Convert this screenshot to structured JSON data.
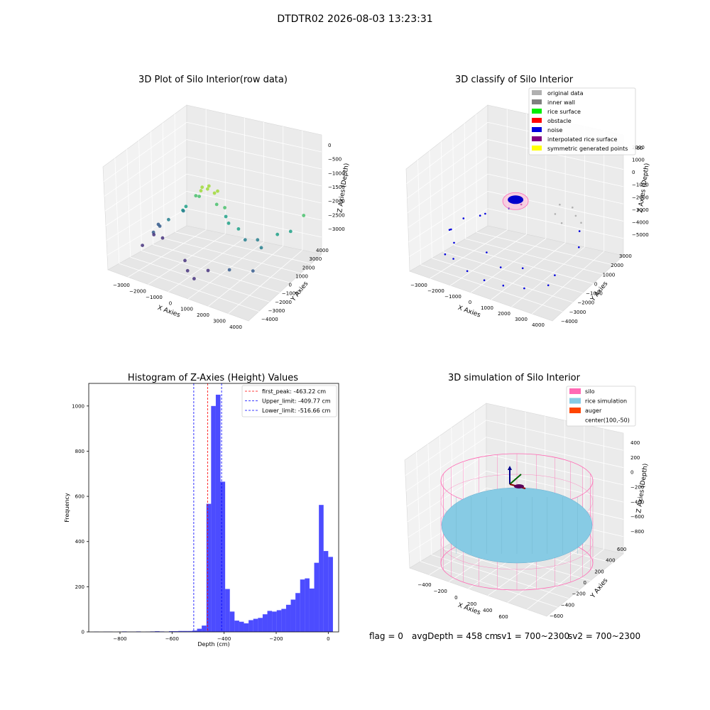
{
  "page_title": "DTDTR02 2026-08-03 13:23:31",
  "footer": {
    "flag": "flag = 0",
    "avgdepth": "avgDepth = 458 cm",
    "sv1": "sv1 = 700~2300",
    "sv2": "sv2 = 700~2300"
  },
  "chart_data": [
    {
      "type": "scatter",
      "dims": 3,
      "title": "3D Plot of Silo Interior(row data)",
      "xlabel": "X Axies",
      "ylabel": "Y Axies",
      "zlabel": "Z Axies (Depth)",
      "x_ticks": [
        "−3000",
        "−2000",
        "−1000",
        "0",
        "1000",
        "2000",
        "3000",
        "4000"
      ],
      "y_ticks": [
        "−4000",
        "−3000",
        "−2000",
        "−1000",
        "0",
        "1000",
        "2000",
        "3000",
        "4000"
      ],
      "z_ticks": [
        "0",
        "−500",
        "−1000",
        "−1500",
        "−2000",
        "−2500",
        "−3000"
      ],
      "xlim": [
        -3500,
        4000
      ],
      "ylim": [
        -4000,
        4000
      ],
      "zlim": [
        -3500,
        0
      ],
      "colormap": "viridis",
      "series": [
        {
          "points": [
            [
              0,
              -800,
              -600
            ],
            [
              200,
              -500,
              -550
            ],
            [
              -200,
              -300,
              -620
            ],
            [
              400,
              -200,
              -700
            ],
            [
              -100,
              200,
              -650
            ],
            [
              300,
              300,
              -750
            ],
            [
              -400,
              -600,
              -900
            ],
            [
              600,
              -400,
              -1000
            ],
            [
              -600,
              100,
              -1100
            ],
            [
              700,
              200,
              -1200
            ],
            [
              -800,
              -900,
              -1300
            ],
            [
              900,
              -100,
              -1400
            ],
            [
              1200,
              -400,
              -1500
            ],
            [
              -1200,
              -500,
              -1600
            ],
            [
              1500,
              0,
              -1700
            ],
            [
              -1500,
              100,
              -1800
            ],
            [
              2000,
              -300,
              -1900
            ],
            [
              2400,
              200,
              -1900
            ],
            [
              2800,
              -200,
              -2000
            ],
            [
              -2000,
              -500,
              -2100
            ],
            [
              -2400,
              -800,
              -2300
            ],
            [
              -2600,
              -300,
              -2500
            ],
            [
              -2800,
              -600,
              -2700
            ],
            [
              -3000,
              -200,
              -2900
            ],
            [
              -2700,
              100,
              -3000
            ],
            [
              0,
              -2500,
              -3000
            ],
            [
              1000,
              -2300,
              -2800
            ],
            [
              2000,
              -2000,
              -2600
            ],
            [
              3000,
              -1500,
              -2500
            ],
            [
              -500,
              -1800,
              -2900
            ],
            [
              3500,
              1500,
              -1600
            ],
            [
              3700,
              2500,
              -1200
            ],
            [
              3600,
              0,
              -1400
            ],
            [
              -3100,
              -1200,
              -3100
            ],
            [
              500,
              -2800,
              -3100
            ]
          ]
        }
      ]
    },
    {
      "type": "scatter",
      "dims": 3,
      "title": "3D classify of Silo Interior",
      "xlabel": "X Axies",
      "ylabel": "Y Axies",
      "zlabel": "Z Axies (Depth)",
      "x_ticks": [
        "−3000",
        "−2000",
        "−1000",
        "0",
        "1000",
        "2000",
        "3000",
        "4000"
      ],
      "y_ticks": [
        "−4000",
        "−3000",
        "−2000",
        "−1000",
        "0",
        "1000",
        "2000",
        "3000"
      ],
      "z_ticks": [
        "2000",
        "1000",
        "0",
        "−1000",
        "−2000",
        "−3000",
        "−4000",
        "−5000"
      ],
      "z_top_partial": "000",
      "xlim": [
        -3500,
        4000
      ],
      "ylim": [
        -4000,
        3500
      ],
      "zlim": [
        -5500,
        2200
      ],
      "legend": [
        {
          "label": "original data",
          "color": "#b0b0b0"
        },
        {
          "label": "inner wall",
          "color": "#808080"
        },
        {
          "label": "rice surface",
          "color": "#00ee00"
        },
        {
          "label": "obstacle",
          "color": "#ff0000"
        },
        {
          "label": "noise",
          "color": "#0000dd"
        },
        {
          "label": "interpolated rice surface",
          "color": "#800080"
        },
        {
          "label": "symmetric generated points",
          "color": "#ffff00"
        }
      ],
      "legend_position": "top-right",
      "series": [
        {
          "name": "noise",
          "color": "#0000dd",
          "points": [
            [
              -3000,
              -1000,
              -3500
            ],
            [
              -2500,
              -1500,
              -4000
            ],
            [
              -2000,
              -2500,
              -4500
            ],
            [
              -1000,
              -3000,
              -4700
            ],
            [
              0,
              -3200,
              -4800
            ],
            [
              1000,
              -3200,
              -4700
            ],
            [
              2000,
              -3000,
              -4500
            ],
            [
              3000,
              -2500,
              -4000
            ],
            [
              -2800,
              0,
              -3000
            ],
            [
              -2200,
              1000,
              -2800
            ],
            [
              -1500,
              2000,
              -2500
            ],
            [
              2500,
              1500,
              -2000
            ],
            [
              3000,
              500,
              -2500
            ],
            [
              -3200,
              -500,
              -3800
            ],
            [
              -500,
              -2000,
              -3500
            ],
            [
              500,
              -2500,
              -3900
            ],
            [
              1500,
              -2200,
              -3600
            ],
            [
              -1800,
              -200,
              -2200
            ],
            [
              2800,
              -1500,
              -3800
            ],
            [
              -2600,
              -2200,
              -4600
            ]
          ]
        },
        {
          "name": "original data",
          "color": "#b0b0b0",
          "points": [
            [
              1500,
              1500,
              -500
            ],
            [
              2000,
              1800,
              -600
            ],
            [
              2500,
              1200,
              -700
            ],
            [
              3000,
              800,
              -800
            ],
            [
              1800,
              500,
              -600
            ],
            [
              2300,
              200,
              -900
            ]
          ]
        },
        {
          "name": "inner wall",
          "color": "#808080",
          "points": []
        },
        {
          "name": "rice surface",
          "color": "#00ee00",
          "points": [
            [
              0,
              0,
              -100
            ],
            [
              200,
              100,
              -150
            ]
          ]
        },
        {
          "name": "obstacle",
          "color": "#ff0000",
          "points": [
            [
              100,
              -100,
              -200
            ]
          ]
        },
        {
          "name": "interpolated rice surface",
          "color": "#800080",
          "points": [
            [
              -300,
              0,
              -400
            ],
            [
              300,
              0,
              -400
            ]
          ]
        },
        {
          "name": "symmetric generated points",
          "color": "#ffff00",
          "points": []
        }
      ]
    },
    {
      "type": "bar",
      "subtype": "histogram",
      "title": "Histogram of Z-Axies (Height) Values",
      "xlabel": "Depth (cm)",
      "ylabel": "Frequency",
      "xlim": [
        -920,
        40
      ],
      "ylim": [
        0,
        1100
      ],
      "x_ticks": [
        -800,
        -600,
        -400,
        -200,
        0
      ],
      "x_tick_labels": [
        "−800",
        "−600",
        "−400",
        "−200",
        "0"
      ],
      "y_ticks": [
        0,
        200,
        400,
        600,
        800,
        1000
      ],
      "color": "#0000ff",
      "bin_start": -900,
      "bin_width": 18,
      "values": [
        1,
        0,
        1,
        1,
        0,
        1,
        2,
        1,
        1,
        2,
        0,
        1,
        2,
        3,
        2,
        1,
        3,
        3,
        4,
        4,
        4,
        6,
        14,
        28,
        567,
        1000,
        1050,
        665,
        190,
        90,
        50,
        45,
        38,
        52,
        58,
        62,
        78,
        93,
        90,
        96,
        102,
        120,
        143,
        172,
        232,
        237,
        192,
        306,
        562,
        358,
        332
      ],
      "lines": [
        {
          "label": "first_peak: -463.22 cm",
          "value": -463.22,
          "color": "#ff0000"
        },
        {
          "label": "Upper_limit: -409.77 cm",
          "value": -409.77,
          "color": "#0000ff"
        },
        {
          "label": "Lower_limit: -516.66 cm",
          "value": -516.66,
          "color": "#0000ff"
        }
      ],
      "legend_position": "top-right"
    },
    {
      "type": "area",
      "dims": 3,
      "title": "3D simulation of Silo Interior",
      "xlabel": "X Axies",
      "ylabel": "Y Axies",
      "zlabel": "Z Axies (Depth)",
      "x_ticks": [
        "−400",
        "−200",
        "0",
        "200",
        "400",
        "600"
      ],
      "y_ticks": [
        "−600",
        "−400",
        "−200",
        "0",
        "200",
        "400",
        "600"
      ],
      "z_ticks": [
        "400",
        "200",
        "0",
        "−200",
        "−400",
        "−600",
        "−800"
      ],
      "legend": [
        {
          "label": "silo",
          "color": "#ff69b4"
        },
        {
          "label": "rice simulation",
          "color": "#87cbe4"
        },
        {
          "label": "auger",
          "color": "#ff4500"
        },
        {
          "label": "center(100,-50)",
          "color": ""
        }
      ],
      "legend_position": "top-right",
      "silo_radius": 650,
      "rice_surface_depth": -458,
      "center": [
        100,
        -50
      ]
    }
  ]
}
